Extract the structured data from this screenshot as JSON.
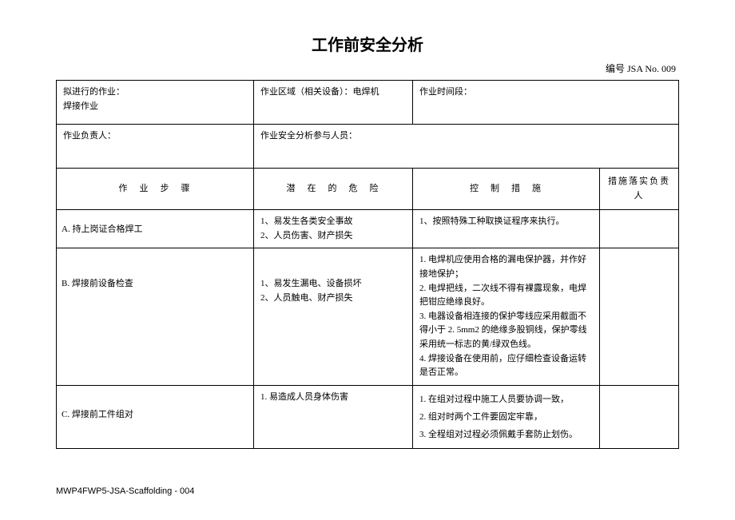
{
  "title": "工作前安全分析",
  "doc_number": "编号 JSA No.  009",
  "header": {
    "planned_work_label": "拟进行的作业：",
    "planned_work_value": "焊接作业",
    "area_label": "作业区域（相关设备）：电焊机",
    "time_label": "作业时间段：",
    "responsible_label": "作业负责人：",
    "participants_label": "作业安全分析参与人员："
  },
  "columns": {
    "step": "作　业　步　骤",
    "hazard": "潜　在　的　危　险",
    "control": "控　制　措　施",
    "person": "措施落实负责人"
  },
  "rows": [
    {
      "step": "A. 持上岗证合格焊工",
      "hazard": "1、易发生各类安全事故\n2、人员伤害、财产损失",
      "control": "1、按照特殊工种取换证程序来执行。",
      "person": ""
    },
    {
      "step": "B. 焊接前设备检查",
      "hazard": "1、易发生漏电、设备损坏\n2、人员触电、财产损失",
      "control": "1. 电焊机应使用合格的漏电保护器，并作好接地保护；\n2. 电焊把线，二次线不得有裸露现象，电焊把钳应绝缘良好。\n3. 电器设备相连接的保护零线应采用截面不得小于 2. 5mm2 的绝缘多股铜线，保护零线采用统一标志的黄/绿双色线。\n4. 焊接设备在使用前，应仔细检查设备运转是否正常。",
      "person": ""
    },
    {
      "step": "C. 焊接前工件组对",
      "hazard": "1. 易造成人员身体伤害",
      "control": "1. 在组对过程中施工人员要协调一致，\n2. 组对时两个工件要固定牢靠，\n3. 全程组对过程必须佩戴手套防止划伤。",
      "person": ""
    }
  ],
  "footer": "MWP4FWP5-JSA-Scaffolding - 004"
}
